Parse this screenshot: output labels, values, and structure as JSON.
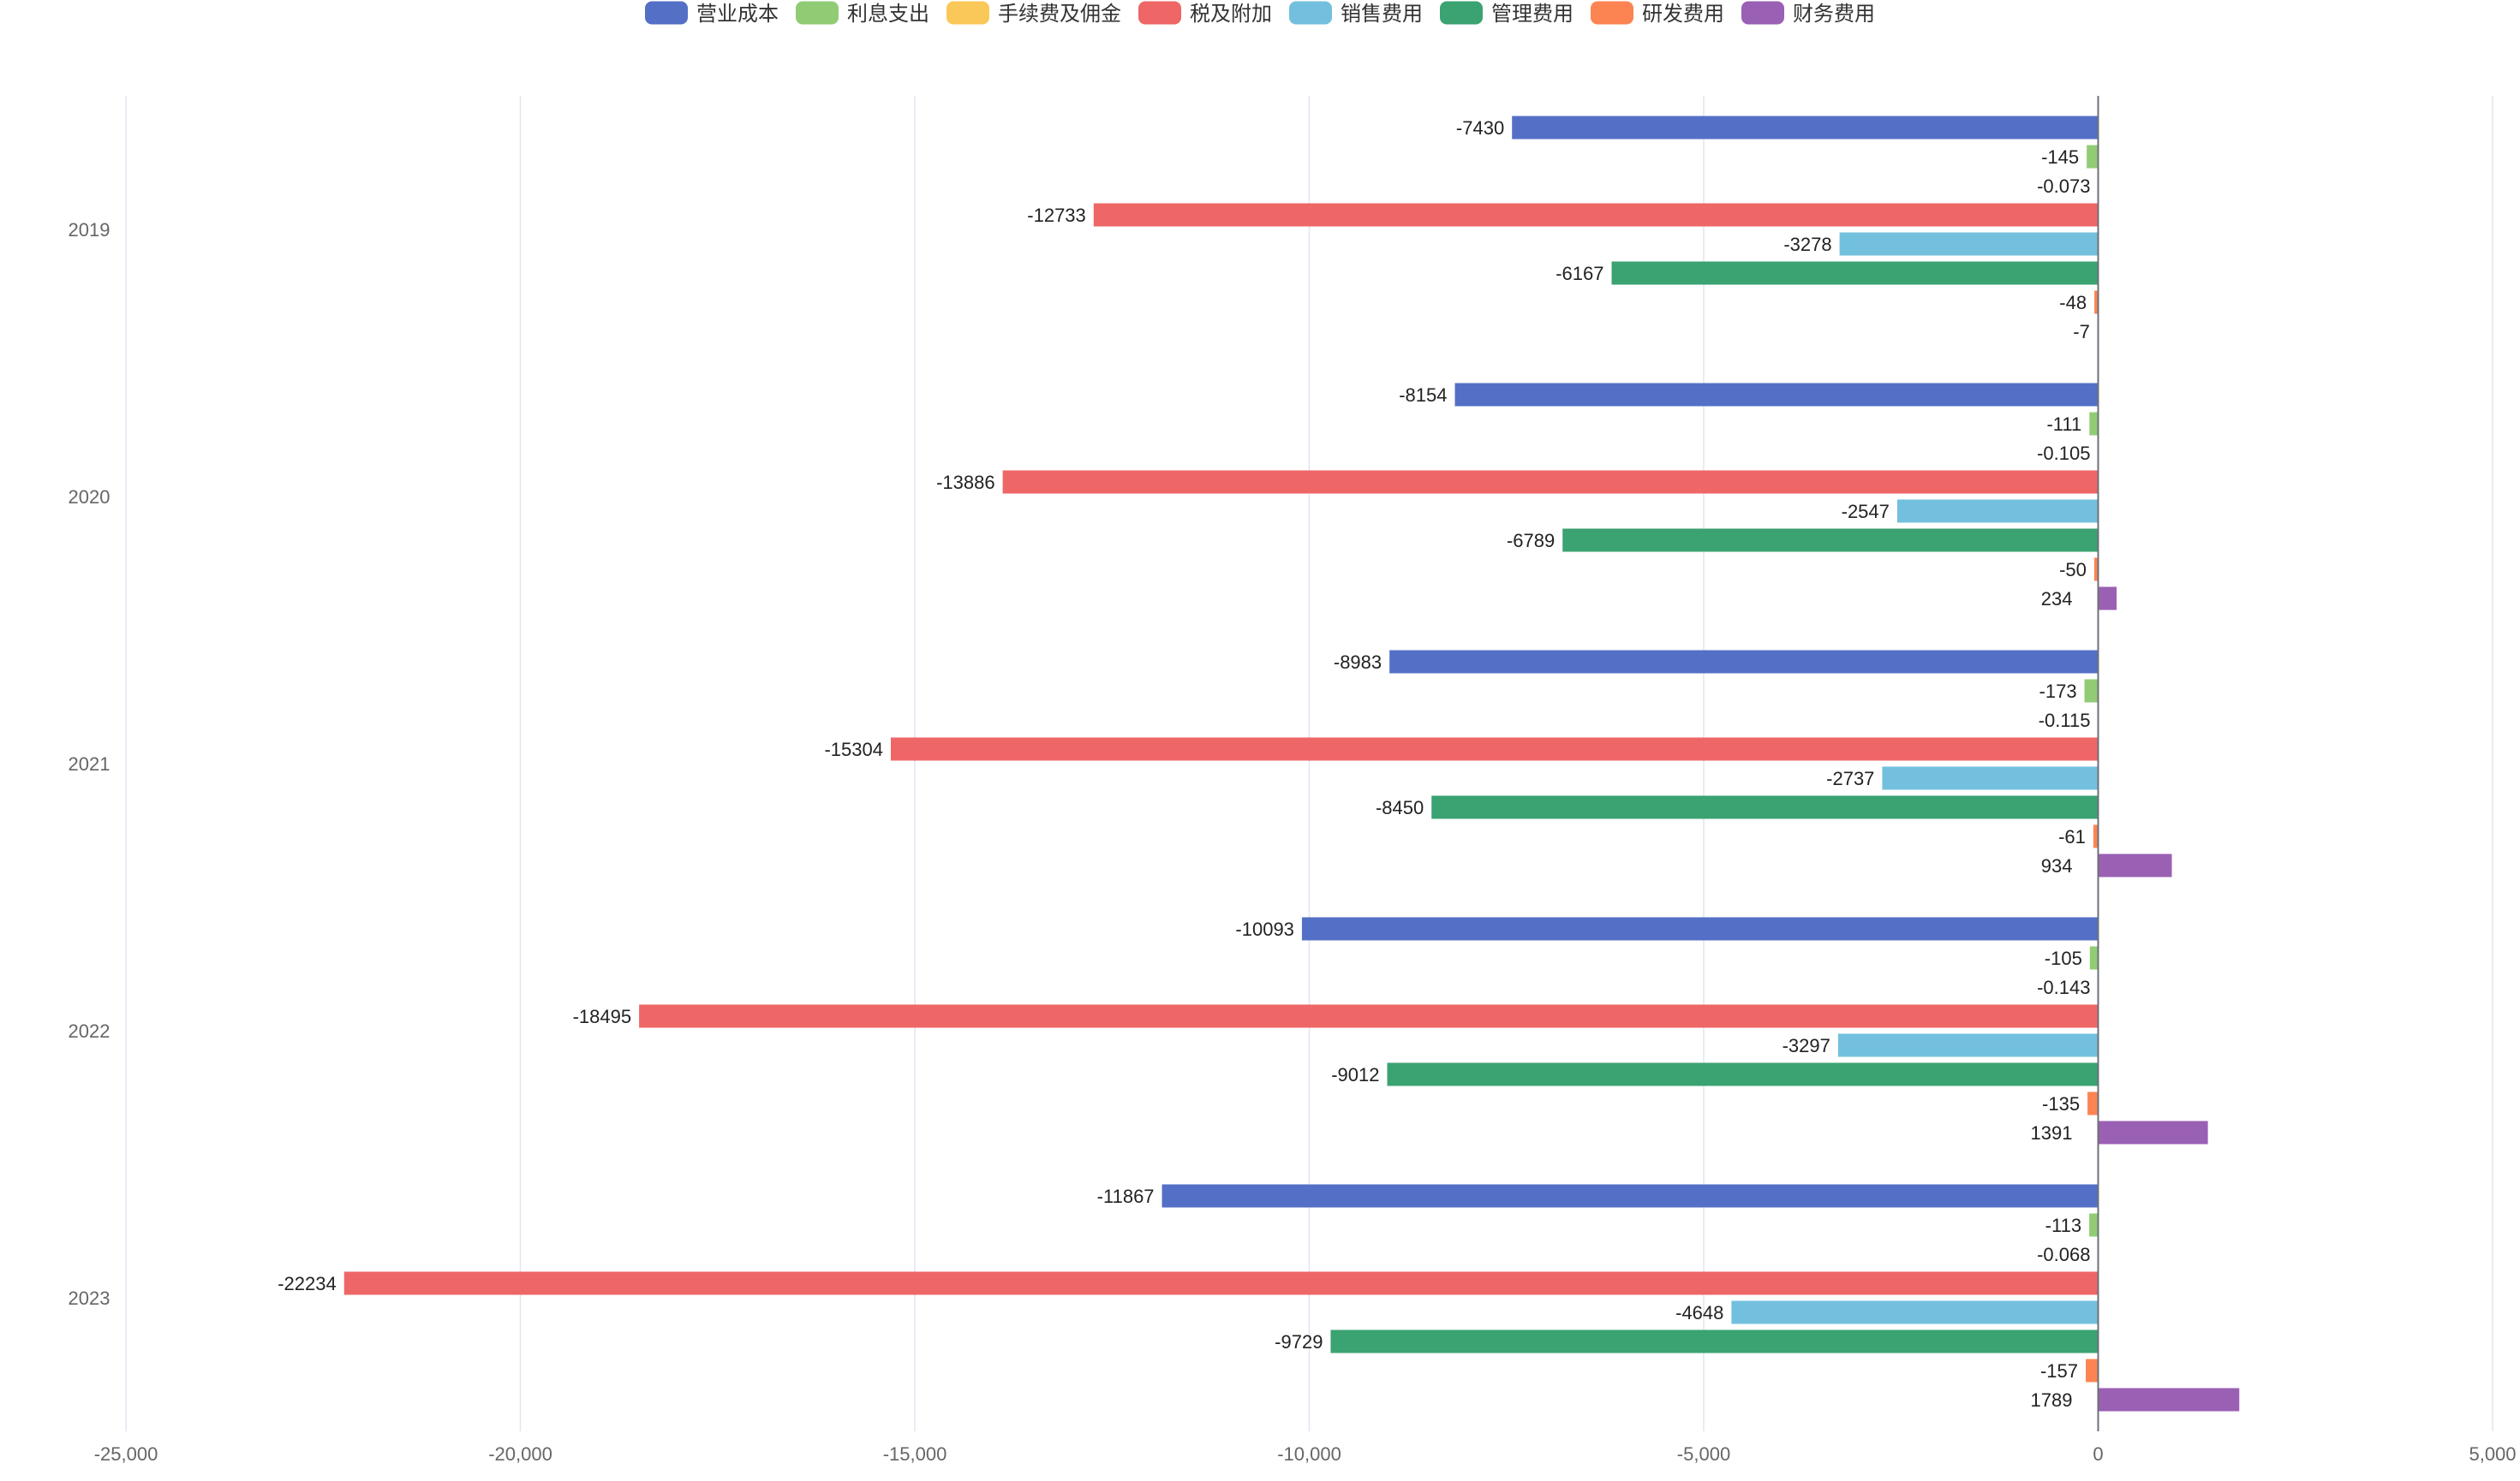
{
  "chart_data": {
    "type": "bar",
    "orientation": "horizontal",
    "title": "",
    "xlabel": "",
    "ylabel": "",
    "legend_position": "top-center",
    "grid": true,
    "xlim": [
      -25000,
      5000
    ],
    "xticks": [
      -25000,
      -20000,
      -15000,
      -10000,
      -5000,
      0,
      5000
    ],
    "xtick_labels": [
      "-25,000",
      "-20,000",
      "-15,000",
      "-10,000",
      "-5,000",
      "0",
      "5,000"
    ],
    "categories": [
      "2019",
      "2020",
      "2021",
      "2022",
      "2023"
    ],
    "series": [
      {
        "name": "营业成本",
        "color": "#5470c6",
        "values": [
          -7430,
          -8154,
          -8983,
          -10093,
          -11867
        ],
        "labels": [
          "-7430",
          "-8154",
          "-8983",
          "-10093",
          "-11867"
        ]
      },
      {
        "name": "利息支出",
        "color": "#91cc75",
        "values": [
          -145,
          -111,
          -173,
          -105,
          -113
        ],
        "labels": [
          "-145",
          "-111",
          "-173",
          "-105",
          "-113"
        ]
      },
      {
        "name": "手续费及佣金",
        "color": "#fac858",
        "values": [
          -0.073,
          -0.105,
          -0.115,
          -0.143,
          -0.068
        ],
        "labels": [
          "-0.073",
          "-0.105",
          "-0.115",
          "-0.143",
          "-0.068"
        ]
      },
      {
        "name": "税及附加",
        "color": "#ee6666",
        "values": [
          -12733,
          -13886,
          -15304,
          -18495,
          -22234
        ],
        "labels": [
          "-12733",
          "-13886",
          "-15304",
          "-18495",
          "-22234"
        ]
      },
      {
        "name": "销售费用",
        "color": "#73c0de",
        "values": [
          -3278,
          -2547,
          -2737,
          -3297,
          -4648
        ],
        "labels": [
          "-3278",
          "-2547",
          "-2737",
          "-3297",
          "-4648"
        ]
      },
      {
        "name": "管理费用",
        "color": "#3ba272",
        "values": [
          -6167,
          -6789,
          -8450,
          -9012,
          -9729
        ],
        "labels": [
          "-6167",
          "-6789",
          "-8450",
          "-9012",
          "-9729"
        ]
      },
      {
        "name": "研发费用",
        "color": "#fc8452",
        "values": [
          -48,
          -50,
          -61,
          -135,
          -157
        ],
        "labels": [
          "-48",
          "-50",
          "-61",
          "-135",
          "-157"
        ]
      },
      {
        "name": "财务费用",
        "color": "#9a60b4",
        "values": [
          -7,
          234,
          934,
          1391,
          1789
        ],
        "labels": [
          "-7",
          "234",
          "934",
          "1391",
          "1789"
        ]
      }
    ]
  }
}
